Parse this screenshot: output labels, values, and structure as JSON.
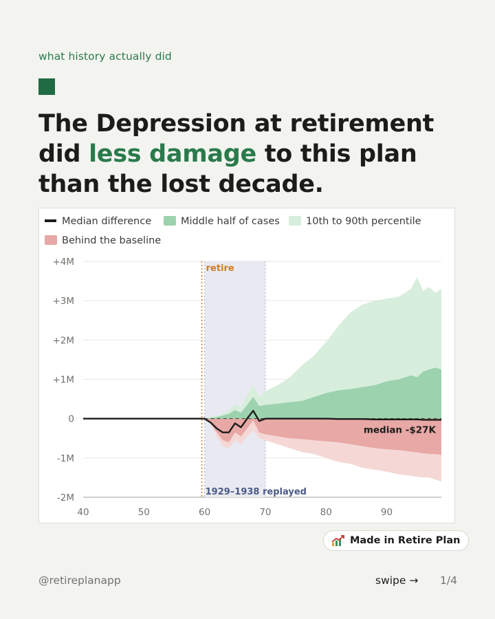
{
  "kicker": "what history actually did",
  "headline": {
    "part1": "The Depression at retirement did ",
    "accent": "less damage",
    "part2": " to this plan than the lost decade."
  },
  "badge": {
    "label": "Made in Retire Plan",
    "icon": "chart-rising-icon"
  },
  "footer": {
    "handle": "@retireplanapp",
    "swipe": "swipe →",
    "page": "1/4"
  },
  "colors": {
    "accent": "#2a7a4b",
    "median": "#1c1d1b",
    "middle_half": "#9dd2ae",
    "outer_band": "#d8eedd",
    "behind_inner": "#e7a8a6",
    "behind_outer": "#f5d8d6",
    "shade": "#e9eaf1",
    "retire_line": "#d17a25",
    "replay_label": "#4b5a86"
  },
  "chart_data": {
    "type": "area",
    "legend": [
      {
        "label": "Median difference",
        "kind": "line"
      },
      {
        "label": "Middle half of cases",
        "kind": "middle"
      },
      {
        "label": "10th to 90th percentile",
        "kind": "outer"
      },
      {
        "label": "Behind the baseline",
        "kind": "behind"
      }
    ],
    "x_ticks": [
      "40",
      "50",
      "60",
      "70",
      "80",
      "90"
    ],
    "x_tick_values": [
      40,
      50,
      60,
      70,
      80,
      90
    ],
    "y_ticks": [
      "+4M",
      "+3M",
      "+2M",
      "+1M",
      "0",
      "-1M",
      "-2M"
    ],
    "y_tick_values": [
      4,
      3,
      2,
      1,
      0,
      -1,
      -2
    ],
    "xlim": [
      40,
      99
    ],
    "ylim": [
      -2,
      4
    ],
    "unit": "M",
    "retire_label": "retire",
    "retire_age": 60,
    "replay_label": "1929–1938 replayed",
    "replay_range": [
      60,
      70
    ],
    "median_label": "median -$27K",
    "baseline": 0,
    "age": [
      60,
      61,
      62,
      63,
      64,
      65,
      66,
      67,
      68,
      69,
      70,
      72,
      74,
      76,
      78,
      80,
      82,
      84,
      86,
      88,
      90,
      92,
      94,
      95,
      96,
      97,
      98,
      99
    ],
    "median": [
      0,
      -0.1,
      -0.25,
      -0.35,
      -0.35,
      -0.12,
      -0.22,
      0,
      0.2,
      -0.06,
      0,
      0,
      0,
      0,
      0,
      0,
      -0.01,
      -0.01,
      -0.01,
      -0.02,
      -0.02,
      -0.02,
      -0.02,
      -0.02,
      -0.03,
      -0.03,
      -0.03,
      -0.03
    ],
    "p25": [
      0,
      -0.12,
      -0.35,
      -0.55,
      -0.6,
      -0.35,
      -0.45,
      -0.25,
      -0.05,
      -0.35,
      -0.4,
      -0.45,
      -0.5,
      -0.52,
      -0.55,
      -0.58,
      -0.6,
      -0.65,
      -0.7,
      -0.75,
      -0.78,
      -0.8,
      -0.84,
      -0.86,
      -0.88,
      -0.9,
      -0.9,
      -0.92
    ],
    "p75": [
      0,
      0.02,
      0.04,
      0.08,
      0.12,
      0.22,
      0.15,
      0.35,
      0.55,
      0.32,
      0.35,
      0.38,
      0.42,
      0.45,
      0.55,
      0.65,
      0.72,
      0.75,
      0.8,
      0.85,
      0.95,
      1.0,
      1.1,
      1.05,
      1.2,
      1.25,
      1.3,
      1.25
    ],
    "p10": [
      0,
      -0.15,
      -0.45,
      -0.7,
      -0.75,
      -0.55,
      -0.65,
      -0.45,
      -0.3,
      -0.5,
      -0.55,
      -0.65,
      -0.75,
      -0.85,
      -0.9,
      -1.0,
      -1.1,
      -1.15,
      -1.25,
      -1.3,
      -1.35,
      -1.42,
      -1.45,
      -1.48,
      -1.5,
      -1.5,
      -1.55,
      -1.6
    ],
    "p90": [
      0,
      0.05,
      0.08,
      0.12,
      0.2,
      0.38,
      0.3,
      0.6,
      0.85,
      0.55,
      0.7,
      0.85,
      1.05,
      1.35,
      1.6,
      1.95,
      2.35,
      2.7,
      2.9,
      3.0,
      3.05,
      3.1,
      3.3,
      3.6,
      3.25,
      3.35,
      3.2,
      3.3
    ]
  }
}
